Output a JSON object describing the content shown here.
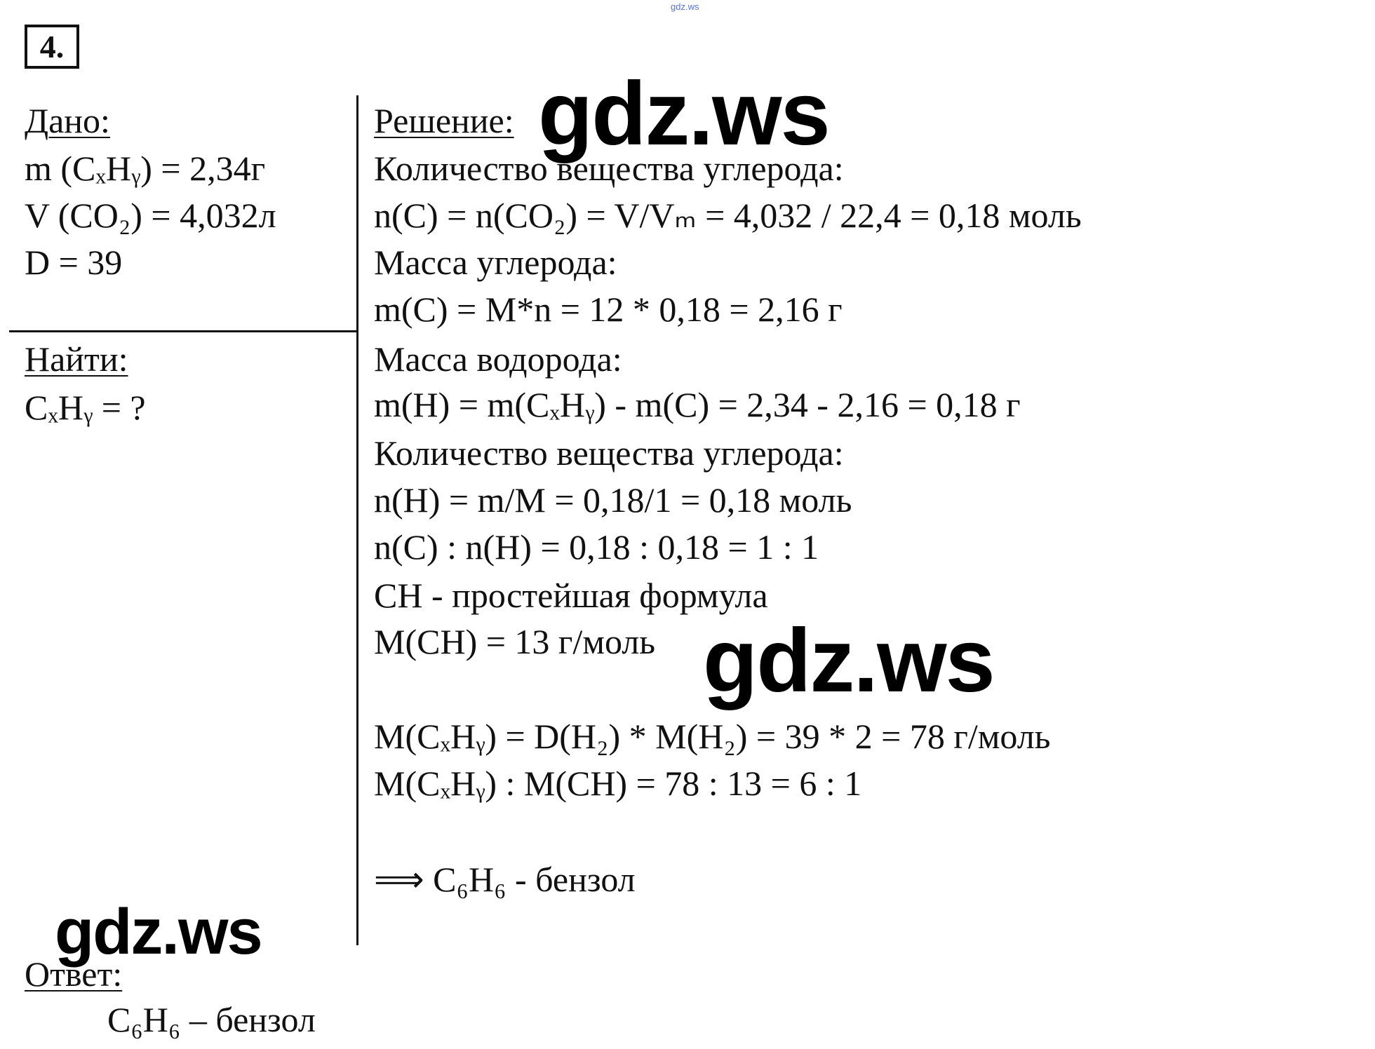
{
  "watermark_top": "gdz.ws",
  "problem_number": "4.",
  "given": {
    "title": "Дано:",
    "lines": [
      "m (CₓHᵧ) = 2,34г",
      "V (CO₂) = 4,032л",
      "D = 39"
    ]
  },
  "find": {
    "title": "Найти:",
    "lines": [
      "CₓHᵧ = ?"
    ]
  },
  "answer": {
    "title": "Ответ:",
    "text": "C₆H₆ – бензол"
  },
  "solution": {
    "title": "Решение:",
    "lines": [
      "Количество вещества углерода:",
      "n(C) = n(CO₂) = V/Vₘ = 4,032 / 22,4 = 0,18 моль",
      "Масса углерода:",
      "m(C) = M*n = 12 * 0,18 = 2,16 г",
      "Масса водорода:",
      "m(H) = m(CₓHᵧ) - m(C) = 2,34 - 2,16 = 0,18 г",
      "Количество вещества углерода:",
      "n(H) = m/M = 0,18/1 = 0,18 моль",
      "n(C) : n(H) = 0,18 : 0,18 = 1 : 1",
      "CH - простейшая формула",
      "M(CH) = 13 г/моль",
      "M(CₓHᵧ) = D(H₂) * M(H₂) = 39 * 2 = 78 г/моль",
      "M(CₓHᵧ) : M(CH) = 78 : 13 = 6 : 1",
      "⟹ C₆H₆ - бензол"
    ]
  },
  "watermarks": [
    "gdz.ws",
    "gdz.ws",
    "gdz.ws"
  ]
}
